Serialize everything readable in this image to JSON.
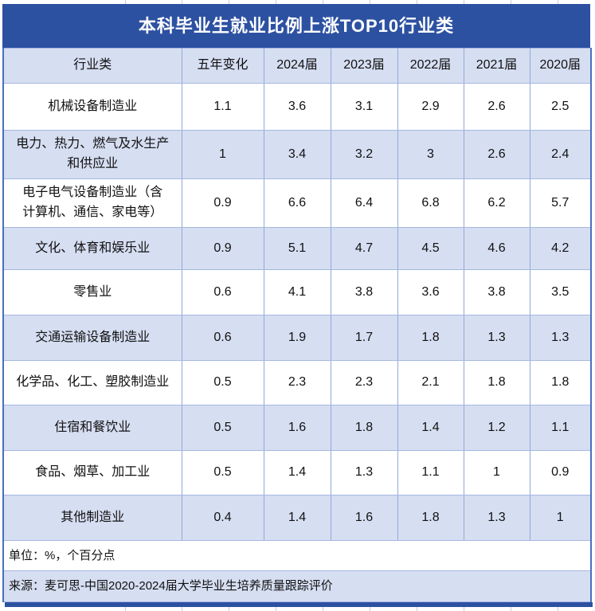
{
  "title": "本科毕业生就业比例上涨TOP10行业类",
  "table": {
    "headers": [
      "行业类",
      "五年变化",
      "2024届",
      "2023届",
      "2022届",
      "2021届",
      "2020届"
    ],
    "rows": [
      {
        "name": "机械设备制造业",
        "values": [
          "1.1",
          "3.6",
          "3.1",
          "2.9",
          "2.6",
          "2.5"
        ]
      },
      {
        "name": "电力、热力、燃气及水生产\n和供应业",
        "values": [
          "1",
          "3.4",
          "3.2",
          "3",
          "2.6",
          "2.4"
        ]
      },
      {
        "name": "电子电气设备制造业（含\n计算机、通信、家电等）",
        "values": [
          "0.9",
          "6.6",
          "6.4",
          "6.8",
          "6.2",
          "5.7"
        ]
      },
      {
        "name": "文化、体育和娱乐业",
        "values": [
          "0.9",
          "5.1",
          "4.7",
          "4.5",
          "4.6",
          "4.2"
        ]
      },
      {
        "name": "零售业",
        "values": [
          "0.6",
          "4.1",
          "3.8",
          "3.6",
          "3.8",
          "3.5"
        ]
      },
      {
        "name": "交通运输设备制造业",
        "values": [
          "0.6",
          "1.9",
          "1.7",
          "1.8",
          "1.3",
          "1.3"
        ]
      },
      {
        "name": "化学品、化工、塑胶制造业",
        "values": [
          "0.5",
          "2.3",
          "2.3",
          "2.1",
          "1.8",
          "1.8"
        ]
      },
      {
        "name": "住宿和餐饮业",
        "values": [
          "0.5",
          "1.6",
          "1.8",
          "1.4",
          "1.2",
          "1.1"
        ]
      },
      {
        "name": "食品、烟草、加工业",
        "values": [
          "0.5",
          "1.4",
          "1.3",
          "1.1",
          "1",
          "0.9"
        ]
      },
      {
        "name": "其他制造业",
        "values": [
          "0.4",
          "1.4",
          "1.6",
          "1.8",
          "1.3",
          "1"
        ]
      }
    ]
  },
  "footnotes": {
    "unit": "单位：%，个百分点",
    "source": "来源：麦可思-中国2020-2024届大学毕业生培养质量跟踪评价"
  },
  "colors": {
    "title_bar": "#2d51a1",
    "header_bg": "#d6def2",
    "row_alt_bg": "#d6def2",
    "row_plain_bg": "#ffffff",
    "outer_border": "#4a6fbe",
    "grid_vertical": "#92a9d6",
    "grid_horizontal": "#a5b8e0",
    "title_text": "#ffffff",
    "body_text": "#111111"
  },
  "chart_data": {
    "type": "table",
    "title": "本科毕业生就业比例上涨TOP10行业类",
    "columns": [
      "行业类",
      "五年变化",
      "2024届",
      "2023届",
      "2022届",
      "2021届",
      "2020届"
    ],
    "rows": [
      [
        "机械设备制造业",
        1.1,
        3.6,
        3.1,
        2.9,
        2.6,
        2.5
      ],
      [
        "电力、热力、燃气及水生产和供应业",
        1,
        3.4,
        3.2,
        3,
        2.6,
        2.4
      ],
      [
        "电子电气设备制造业（含计算机、通信、家电等）",
        0.9,
        6.6,
        6.4,
        6.8,
        6.2,
        5.7
      ],
      [
        "文化、体育和娱乐业",
        0.9,
        5.1,
        4.7,
        4.5,
        4.6,
        4.2
      ],
      [
        "零售业",
        0.6,
        4.1,
        3.8,
        3.6,
        3.8,
        3.5
      ],
      [
        "交通运输设备制造业",
        0.6,
        1.9,
        1.7,
        1.8,
        1.3,
        1.3
      ],
      [
        "化学品、化工、塑胶制造业",
        0.5,
        2.3,
        2.3,
        2.1,
        1.8,
        1.8
      ],
      [
        "住宿和餐饮业",
        0.5,
        1.6,
        1.8,
        1.4,
        1.2,
        1.1
      ],
      [
        "食品、烟草、加工业",
        0.5,
        1.4,
        1.3,
        1.1,
        1,
        0.9
      ],
      [
        "其他制造业",
        0.4,
        1.4,
        1.6,
        1.8,
        1.3,
        1
      ]
    ],
    "unit": "%，个百分点",
    "source": "麦可思-中国2020-2024届大学毕业生培养质量跟踪评价"
  }
}
